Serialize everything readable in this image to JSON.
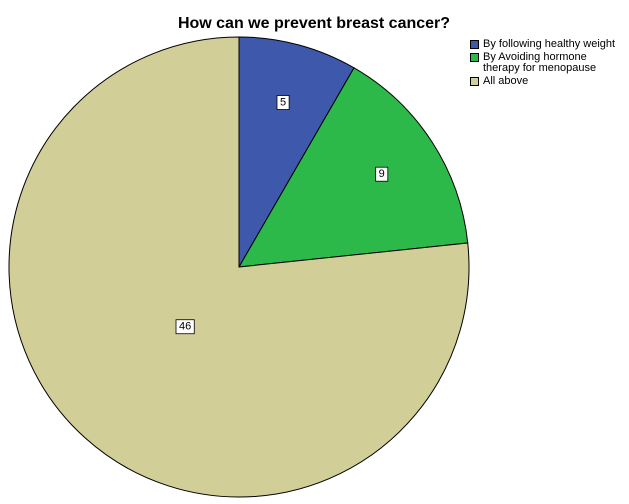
{
  "chart_data": {
    "type": "pie",
    "title": "How can we prevent breast cancer?",
    "categories": [
      "By following healthy weight",
      "By Avoiding hormone therapy for menopause",
      "All above"
    ],
    "values": [
      5,
      9,
      46
    ],
    "colors": [
      "#3e58ac",
      "#2db84a",
      "#d2ce97"
    ]
  }
}
